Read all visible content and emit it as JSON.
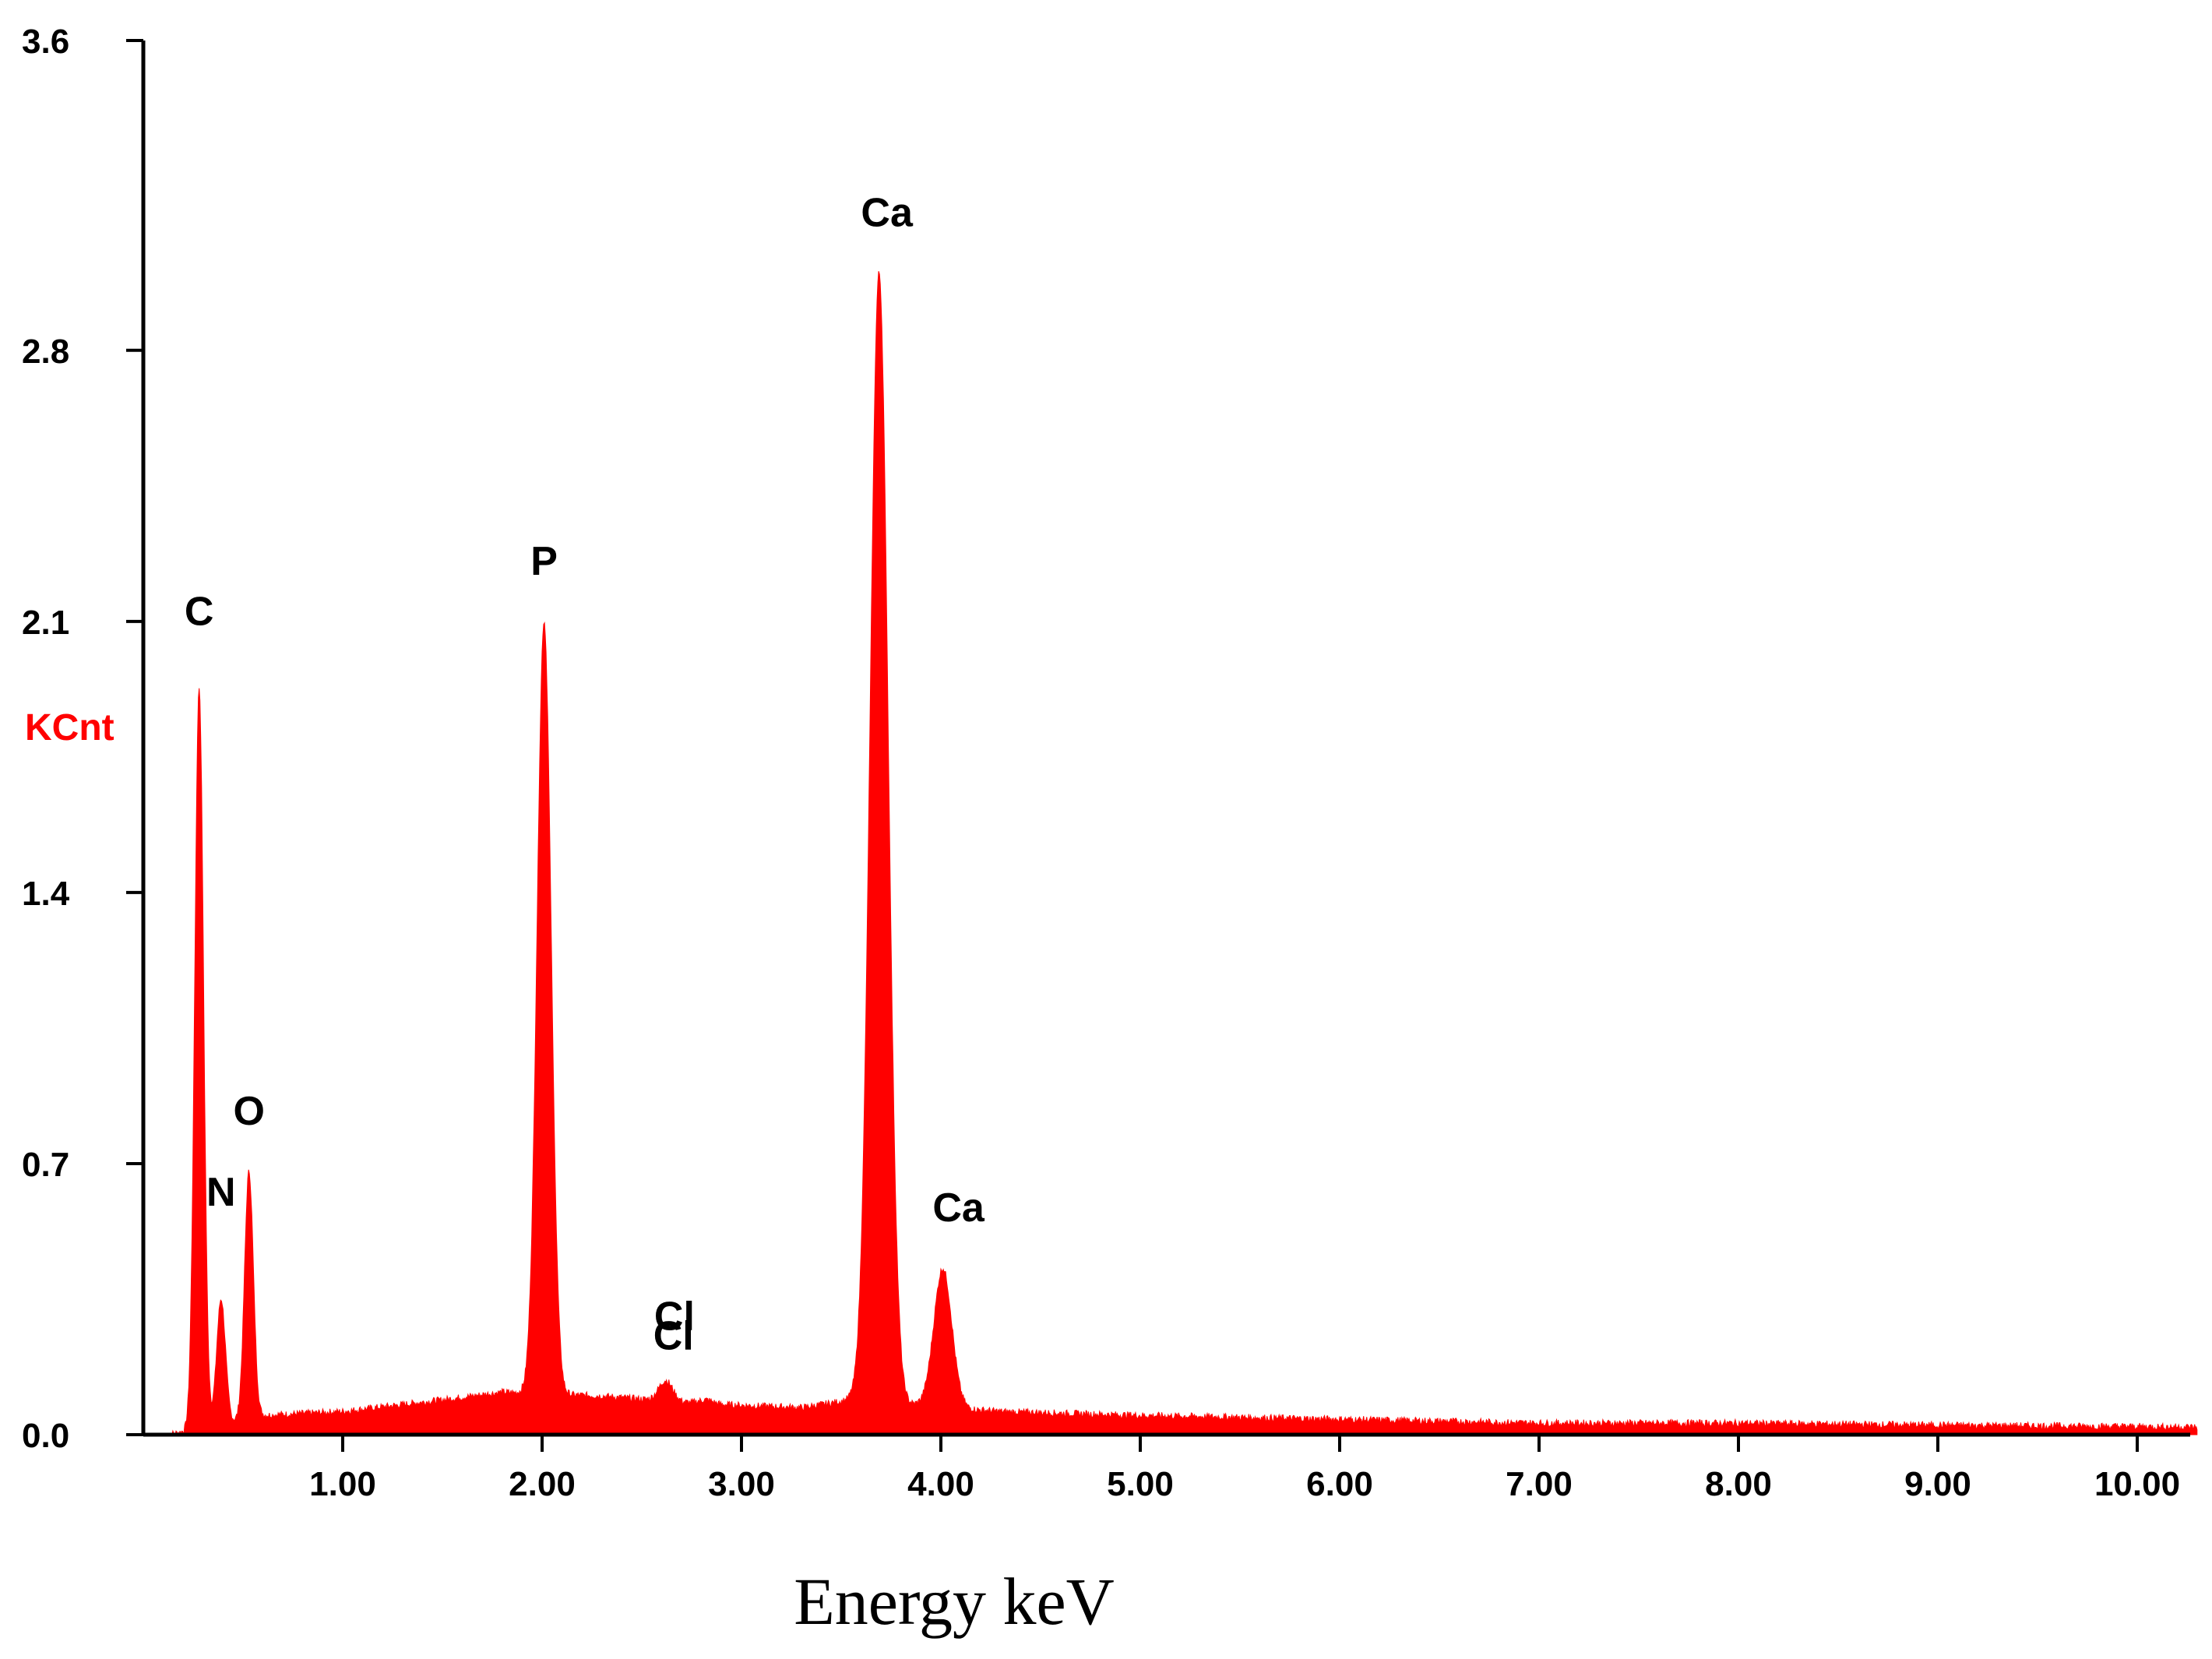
{
  "chart_data": {
    "type": "area",
    "xlabel": "Energy keV",
    "ylabel": "KCnt",
    "xlim": [
      0,
      10.3
    ],
    "ylim": [
      0,
      3.6
    ],
    "x_ticks": [
      "1.00",
      "2.00",
      "3.00",
      "4.00",
      "5.00",
      "6.00",
      "7.00",
      "8.00",
      "9.00",
      "10.00"
    ],
    "y_ticks": [
      "0.0",
      "0.7",
      "1.4",
      "2.1",
      "2.8",
      "3.6"
    ],
    "grid": false,
    "series_color": "#ff0000",
    "ylabel_color": "#ff0000",
    "peaks": [
      {
        "label": "C",
        "x": 0.28,
        "y": 1.93
      },
      {
        "label": "N",
        "x": 0.39,
        "y": 0.35
      },
      {
        "label": "O",
        "x": 0.53,
        "y": 0.68
      },
      {
        "label": "P",
        "x": 2.01,
        "y": 2.1
      },
      {
        "label": "Cl",
        "x": 2.62,
        "y": 0.14
      },
      {
        "label": "Cl",
        "x": 2.82,
        "y": 0.09
      },
      {
        "label": "Ca",
        "x": 3.69,
        "y": 3.0
      },
      {
        "label": "Ca",
        "x": 4.01,
        "y": 0.43
      }
    ],
    "background": [
      [
        0.12,
        0.0
      ],
      [
        0.6,
        0.05
      ],
      [
        1.0,
        0.06
      ],
      [
        1.5,
        0.09
      ],
      [
        1.8,
        0.11
      ],
      [
        2.3,
        0.1
      ],
      [
        2.8,
        0.08
      ],
      [
        3.3,
        0.07
      ],
      [
        3.55,
        0.09
      ],
      [
        4.3,
        0.06
      ],
      [
        5.0,
        0.05
      ],
      [
        6.0,
        0.04
      ],
      [
        7.0,
        0.03
      ],
      [
        8.0,
        0.03
      ],
      [
        9.0,
        0.025
      ],
      [
        10.3,
        0.02
      ]
    ]
  }
}
